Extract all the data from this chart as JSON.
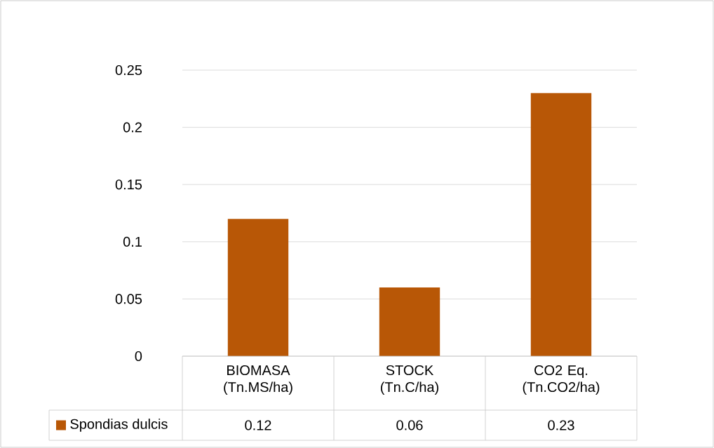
{
  "chart_data": {
    "type": "bar",
    "categories": [
      "BIOMASA (Tn.MS/ha)",
      "STOCK (Tn.C/ha)",
      "CO2 Eq. (Tn.CO2/ha)"
    ],
    "series": [
      {
        "name": "Spondias dulcis",
        "color": "#b85706",
        "values": [
          0.12,
          0.06,
          0.23
        ]
      }
    ],
    "ylim": [
      0,
      0.25
    ],
    "yticks": [
      0,
      0.05,
      0.1,
      0.15,
      0.2,
      0.25
    ],
    "grid": "y",
    "legend": "bottom",
    "data_labels": true
  }
}
